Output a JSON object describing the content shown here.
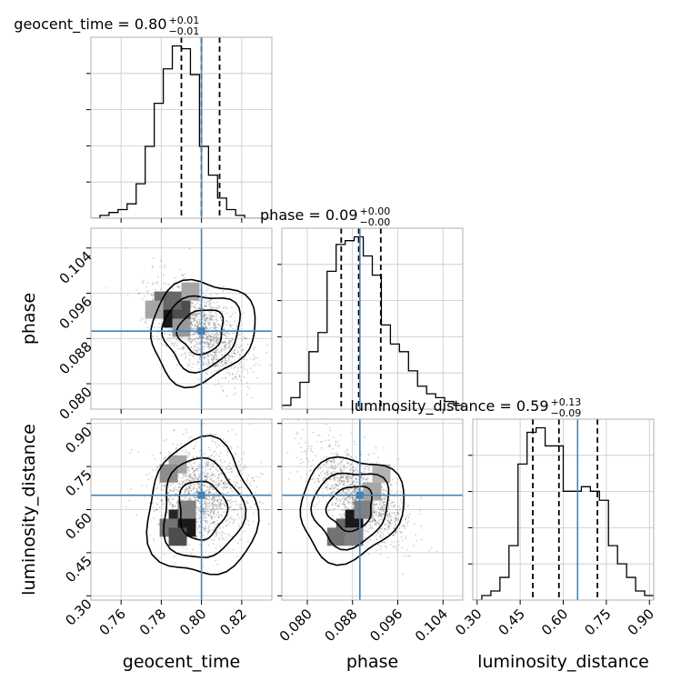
{
  "chart_data": {
    "type": "corner",
    "parameters": [
      "geocent_time",
      "phase",
      "luminosity_distance"
    ],
    "truths": [
      0.8,
      0.0893,
      0.65
    ],
    "truth_color": "#4682b4",
    "ranges": [
      [
        0.745,
        0.835
      ],
      [
        0.0755,
        0.1075
      ],
      [
        0.285,
        0.915
      ]
    ],
    "ticks": [
      {
        "values": [
          0.76,
          0.78,
          0.8,
          0.82
        ],
        "labels": [
          "0.76",
          "0.78",
          "0.80",
          "0.82"
        ]
      },
      {
        "values": [
          0.08,
          0.088,
          0.096,
          0.104
        ],
        "labels": [
          "0.080",
          "0.088",
          "0.096",
          "0.104"
        ]
      },
      {
        "values": [
          0.3,
          0.45,
          0.6,
          0.75,
          0.9
        ],
        "labels": [
          "0.30",
          "0.45",
          "0.60",
          "0.75",
          "0.90"
        ]
      }
    ],
    "titles": [
      {
        "text": "geocent_time = 0.80",
        "sup": "+0.01",
        "sub": "−0.01"
      },
      {
        "text": "phase = 0.09",
        "sup": "+0.00",
        "sub": "−0.00"
      },
      {
        "text": "luminosity_distance = 0.59",
        "sup": "+0.13",
        "sub": "−0.09"
      }
    ],
    "quantiles": [
      [
        0.79,
        0.8,
        0.809
      ],
      [
        0.086,
        0.0891,
        0.093
      ],
      [
        0.494,
        0.585,
        0.719
      ]
    ],
    "histograms": [
      {
        "edges_range": [
          0.745,
          0.835
        ],
        "counts": [
          0,
          1,
          2,
          3,
          5,
          12,
          25,
          40,
          52,
          60,
          59,
          50,
          25,
          15,
          7,
          3,
          1,
          0,
          0,
          0
        ]
      },
      {
        "edges_range": [
          0.0755,
          0.1075
        ],
        "counts": [
          1,
          3,
          7,
          15,
          20,
          36,
          43,
          44,
          45,
          40,
          35,
          22,
          17,
          15,
          10,
          6,
          4,
          3,
          2,
          1
        ]
      },
      {
        "edges_range": [
          0.285,
          0.915
        ],
        "counts": [
          0,
          1,
          2,
          5,
          12,
          30,
          37,
          38,
          34,
          34,
          24,
          24,
          25,
          24,
          22,
          12,
          8,
          5,
          2,
          1
        ]
      }
    ],
    "grid": true,
    "xlabel_rotation_deg": 45,
    "ylabel_rotation_deg": 45
  }
}
